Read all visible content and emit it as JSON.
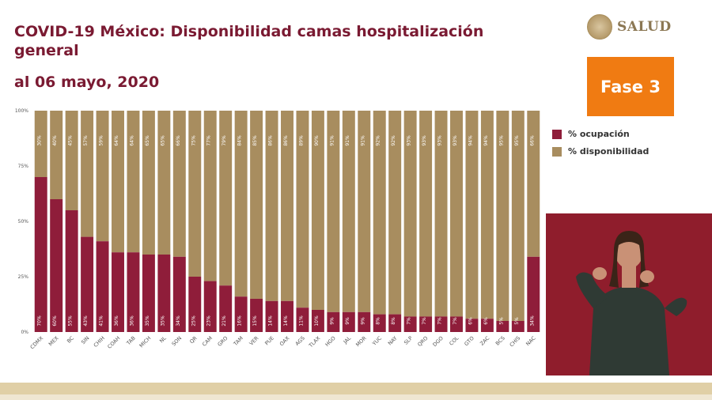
{
  "title": "COVID-19 México: Disponibilidad camas hospitalización general",
  "subtitle": "al 06 mayo, 2020",
  "logo": {
    "text": "SALUD"
  },
  "phase_label": "Fase 3",
  "colors": {
    "occupied": "#8f1d3a",
    "available": "#a88d5f",
    "title": "#7a1a32",
    "phase_bg": "#f07b12"
  },
  "chart_data": {
    "type": "bar",
    "stacked": true,
    "percent": true,
    "title": "COVID-19 México: Disponibilidad camas hospitalización general",
    "ylim": [
      0,
      100
    ],
    "yticks": [
      "0%",
      "25%",
      "50%",
      "75%",
      "100%"
    ],
    "legend_position": "right",
    "categories": [
      "CDMX",
      "MEX",
      "BC",
      "SIN",
      "CHIH",
      "COAH",
      "TAB",
      "MICH",
      "NL",
      "SON",
      "QR",
      "CAM",
      "GRO",
      "TAM",
      "VER",
      "PUE",
      "OAX",
      "AGS",
      "TLAX",
      "HGO",
      "JAL",
      "MOR",
      "YUC",
      "NAY",
      "SLP",
      "QRO",
      "DGO",
      "COL",
      "GTO",
      "ZAC",
      "BCS",
      "CHIS",
      "NAC"
    ],
    "series": [
      {
        "name": "% ocupación",
        "values": [
          70,
          60,
          55,
          43,
          41,
          36,
          36,
          35,
          35,
          34,
          25,
          23,
          21,
          16,
          15,
          14,
          14,
          11,
          10,
          9,
          9,
          9,
          8,
          8,
          7,
          7,
          7,
          7,
          6,
          6,
          5,
          5,
          34
        ]
      },
      {
        "name": "% disponibilidad",
        "values": [
          30,
          40,
          45,
          57,
          59,
          64,
          64,
          65,
          65,
          66,
          75,
          77,
          79,
          84,
          85,
          86,
          86,
          89,
          90,
          91,
          91,
          91,
          92,
          92,
          93,
          93,
          93,
          93,
          94,
          94,
          95,
          95,
          66
        ]
      }
    ]
  }
}
